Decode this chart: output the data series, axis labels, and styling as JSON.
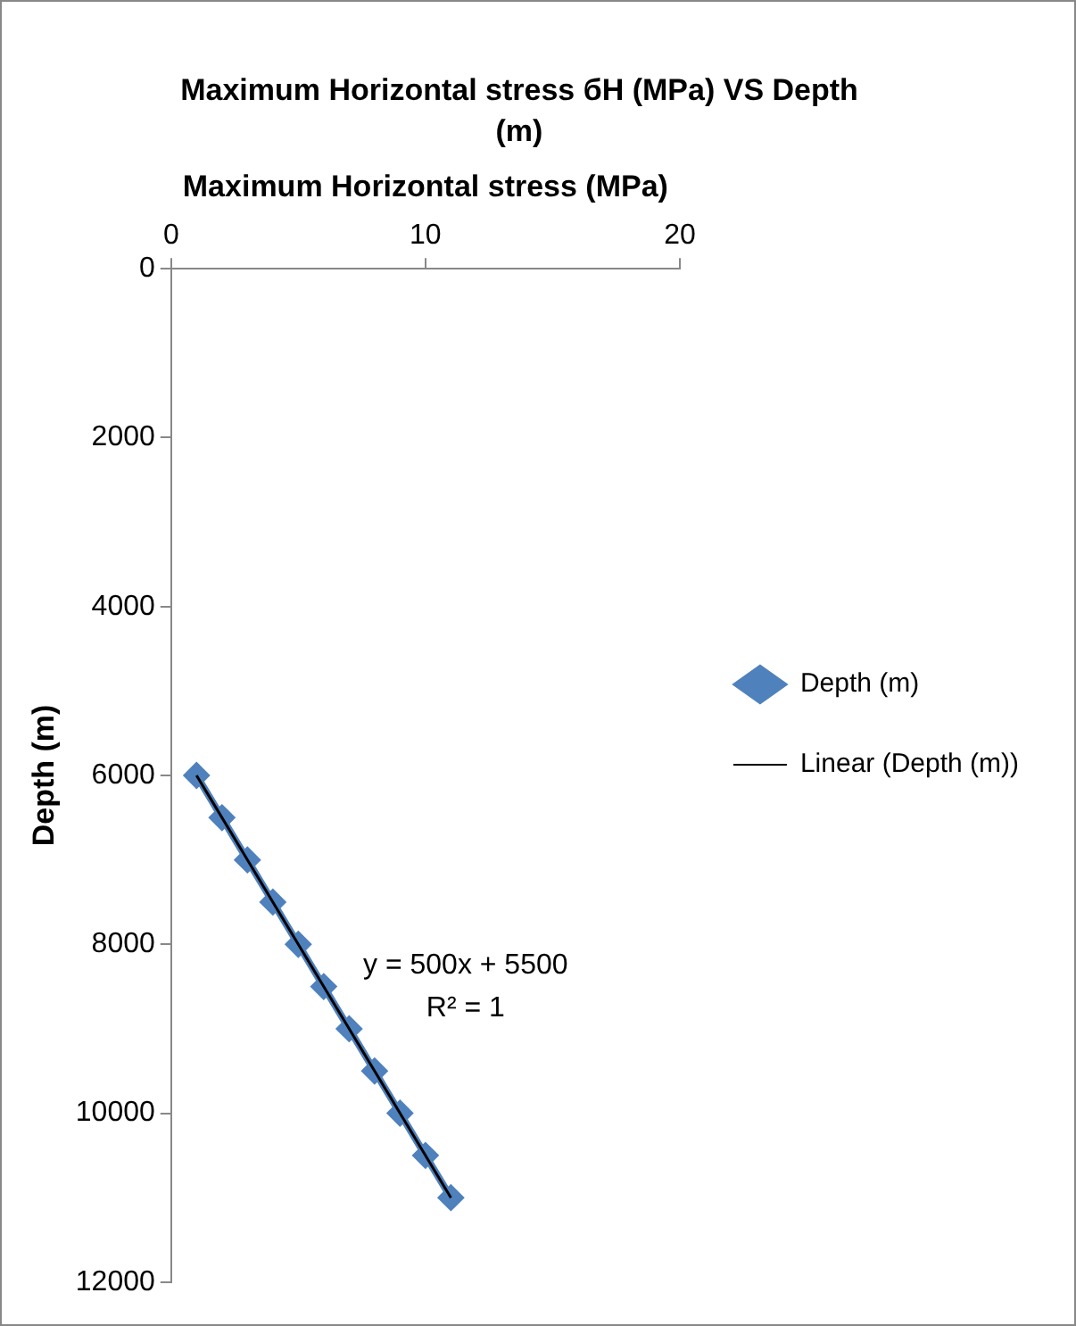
{
  "chart_data": {
    "type": "line",
    "title": "Maximum Horizontal stress бH (MPa) VS Depth (m)",
    "xlabel": "Maximum Horizontal stress (MPa)",
    "ylabel": "Depth (m)",
    "xlim": [
      0,
      20
    ],
    "xticks": [
      0,
      10,
      20
    ],
    "ylim": [
      12000,
      0
    ],
    "yticks": [
      0,
      2000,
      4000,
      6000,
      8000,
      10000,
      12000
    ],
    "grid": false,
    "legend": "right",
    "series": [
      {
        "name": "Depth (m)",
        "color": "#4f81bd",
        "marker": "diamond",
        "x": [
          1,
          2,
          3,
          4,
          5,
          6,
          7,
          8,
          9,
          10,
          11
        ],
        "values": [
          6000,
          6500,
          7000,
          7500,
          8000,
          8500,
          9000,
          9500,
          10000,
          10500,
          11000
        ]
      },
      {
        "name": "Linear (Depth (m))",
        "color": "#000000",
        "marker": "none",
        "x": [
          1,
          11
        ],
        "values": [
          6000,
          11000
        ]
      }
    ],
    "annotations": [
      "y = 500x + 5500",
      "R² = 1"
    ]
  }
}
